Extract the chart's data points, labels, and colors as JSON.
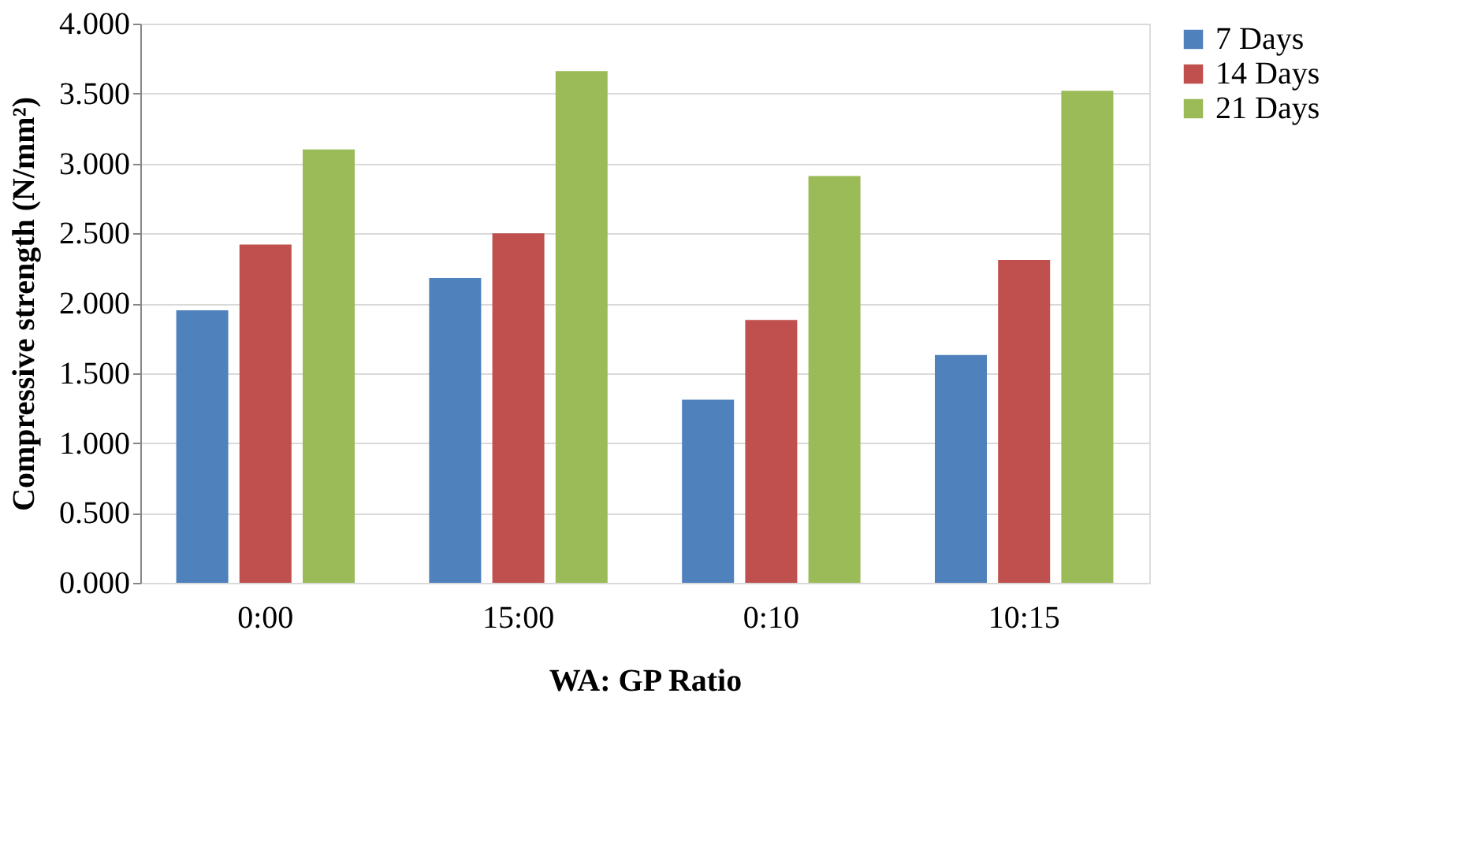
{
  "chart_data": {
    "type": "bar",
    "xlabel": "WA: GP Ratio",
    "ylabel": "Compressive strength (N/mm²)",
    "categories": [
      "0:00",
      "15:00",
      "0:10",
      "10:15"
    ],
    "series": [
      {
        "name": "7 Days",
        "color": "#4f81bd",
        "values": [
          1.95,
          2.18,
          1.31,
          1.63
        ]
      },
      {
        "name": "14 Days",
        "color": "#c0504d",
        "values": [
          2.42,
          2.5,
          1.88,
          2.31
        ]
      },
      {
        "name": "21 Days",
        "color": "#9bbb59",
        "values": [
          3.1,
          3.66,
          2.91,
          3.52
        ]
      }
    ],
    "ylim": [
      0,
      4
    ],
    "yticks": [
      {
        "value": 0,
        "label": "0.000"
      },
      {
        "value": 0.5,
        "label": "0.500"
      },
      {
        "value": 1,
        "label": "1.000"
      },
      {
        "value": 1.5,
        "label": "1.500"
      },
      {
        "value": 2,
        "label": "2.000"
      },
      {
        "value": 2.5,
        "label": "2.500"
      },
      {
        "value": 3,
        "label": "3.000"
      },
      {
        "value": 3.5,
        "label": "3.500"
      },
      {
        "value": 4,
        "label": "4.000"
      }
    ],
    "grid": "y",
    "legend": "right"
  }
}
